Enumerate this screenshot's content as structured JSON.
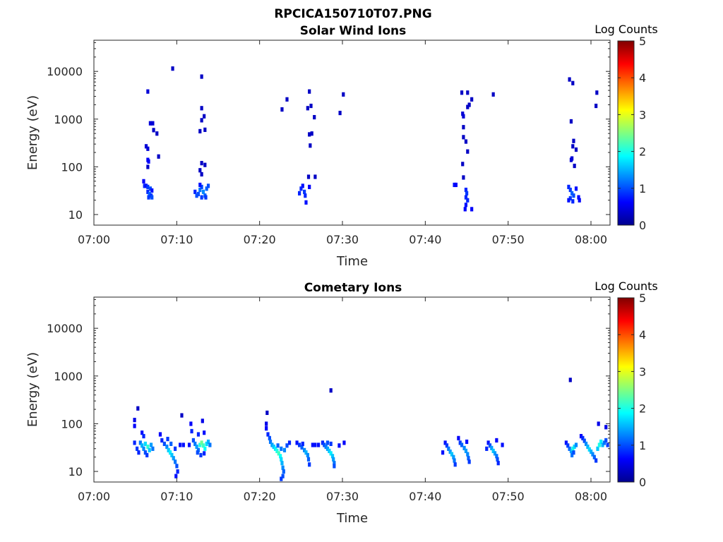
{
  "figure_title": "RPCICA150710T07.PNG",
  "colorbar_ticks": [
    "0",
    "1",
    "2",
    "3",
    "4",
    "5"
  ],
  "colorbar_label": "Log Counts",
  "colormap": [
    "#00008f",
    "#0000ff",
    "#0080ff",
    "#00ffff",
    "#80ff80",
    "#ffff00",
    "#ff8000",
    "#ff0000",
    "#800000"
  ],
  "chart_data": [
    {
      "type": "heatmap",
      "title": "Solar Wind Ions",
      "xlabel": "Time",
      "ylabel": "Energy (eV)",
      "x_ticks": [
        "07:00",
        "07:10",
        "07:20",
        "07:30",
        "07:40",
        "07:50",
        "08:00"
      ],
      "y_ticks": [
        "10",
        "100",
        "1000",
        "10000"
      ],
      "y_scale": "log",
      "ylim": [
        6,
        45000
      ],
      "xlim_minutes": [
        0,
        62.3
      ],
      "clim": [
        0,
        5
      ],
      "cells": [
        [
          9.5,
          11500,
          0.3
        ],
        [
          6.5,
          3800,
          0.4
        ],
        [
          13,
          7800,
          0.3
        ],
        [
          13,
          1700,
          0.3
        ],
        [
          13.3,
          1150,
          0.3
        ],
        [
          13.4,
          600,
          0.3
        ],
        [
          12.8,
          560,
          0.3
        ],
        [
          13,
          950,
          0.3
        ],
        [
          6.8,
          820,
          0.4
        ],
        [
          7.1,
          820,
          0.4
        ],
        [
          7.2,
          590,
          0.3
        ],
        [
          7.6,
          500,
          0.3
        ],
        [
          6.3,
          270,
          0.4
        ],
        [
          6.5,
          240,
          0.4
        ],
        [
          7.8,
          165,
          0.3
        ],
        [
          6.5,
          140,
          0.6
        ],
        [
          6.6,
          130,
          0.6
        ],
        [
          6.5,
          100,
          0.3
        ],
        [
          12.8,
          85,
          0.3
        ],
        [
          13,
          120,
          0.3
        ],
        [
          13.4,
          110,
          0.3
        ],
        [
          13,
          70,
          0.3
        ],
        [
          6,
          50,
          0.6
        ],
        [
          6.1,
          40,
          0.8
        ],
        [
          6.3,
          40,
          0.7
        ],
        [
          6.5,
          38,
          0.9
        ],
        [
          6.8,
          35,
          1.0
        ],
        [
          7,
          32,
          0.7
        ],
        [
          6.5,
          30,
          0.8
        ],
        [
          6.7,
          27,
          1.1
        ],
        [
          6.9,
          25,
          0.9
        ],
        [
          6.6,
          23,
          0.9
        ],
        [
          7.0,
          23,
          1.0
        ],
        [
          12.2,
          30,
          0.8
        ],
        [
          12.4,
          25,
          1.0
        ],
        [
          12.6,
          27,
          1.0
        ],
        [
          12.8,
          33,
          1.2
        ],
        [
          13.0,
          38,
          1.0
        ],
        [
          13.2,
          30,
          1.3
        ],
        [
          13.4,
          25,
          1.1
        ],
        [
          13.6,
          35,
          1.1
        ],
        [
          13.8,
          40,
          1.0
        ],
        [
          13.0,
          23,
          0.9
        ],
        [
          13.5,
          23,
          0.9
        ],
        [
          12.8,
          42,
          0.7
        ],
        [
          22.7,
          1600,
          0.3
        ],
        [
          23.3,
          2600,
          0.3
        ],
        [
          25.8,
          1700,
          0.3
        ],
        [
          26.2,
          1900,
          0.3
        ],
        [
          26.6,
          1100,
          0.3
        ],
        [
          26.0,
          3800,
          0.3
        ],
        [
          26,
          480,
          0.3
        ],
        [
          26.3,
          500,
          0.3
        ],
        [
          26.1,
          280,
          0.3
        ],
        [
          25.9,
          62,
          0.3
        ],
        [
          26.7,
          62,
          0.3
        ],
        [
          24.8,
          28,
          0.8
        ],
        [
          25.0,
          35,
          0.8
        ],
        [
          25.2,
          40,
          0.7
        ],
        [
          25.4,
          30,
          0.9
        ],
        [
          25.5,
          25,
          0.8
        ],
        [
          25.6,
          18,
          0.7
        ],
        [
          26.0,
          38,
          0.6
        ],
        [
          29.7,
          1350,
          0.3
        ],
        [
          30.1,
          3300,
          0.3
        ],
        [
          43.5,
          42,
          0.7
        ],
        [
          43.7,
          42,
          0.6
        ],
        [
          44.4,
          3600,
          0.3
        ],
        [
          45.1,
          3600,
          0.3
        ],
        [
          45.6,
          2600,
          0.3
        ],
        [
          45.3,
          2000,
          0.3
        ],
        [
          45.1,
          1800,
          0.3
        ],
        [
          44.5,
          1300,
          0.4
        ],
        [
          44.6,
          1150,
          0.4
        ],
        [
          44.6,
          680,
          0.3
        ],
        [
          44.6,
          420,
          0.3
        ],
        [
          44.9,
          340,
          0.3
        ],
        [
          45.1,
          210,
          0.3
        ],
        [
          44.5,
          115,
          0.3
        ],
        [
          44.6,
          60,
          0.3
        ],
        [
          48.2,
          3300,
          0.3
        ],
        [
          44.9,
          33,
          0.8
        ],
        [
          45.0,
          28,
          0.9
        ],
        [
          44.9,
          23,
          0.8
        ],
        [
          45.1,
          20,
          0.8
        ],
        [
          44.9,
          16,
          0.7
        ],
        [
          44.8,
          13,
          0.6
        ],
        [
          45.6,
          13,
          0.6
        ],
        [
          57.4,
          6800,
          0.3
        ],
        [
          57.8,
          5700,
          0.3
        ],
        [
          57.6,
          900,
          0.3
        ],
        [
          57.9,
          350,
          0.3
        ],
        [
          57.8,
          270,
          0.3
        ],
        [
          58.2,
          230,
          0.3
        ],
        [
          57.7,
          150,
          0.4
        ],
        [
          57.6,
          140,
          0.4
        ],
        [
          58.0,
          105,
          0.3
        ],
        [
          60.7,
          3600,
          0.3
        ],
        [
          60.6,
          1900,
          0.3
        ],
        [
          57.3,
          38,
          0.8
        ],
        [
          57.5,
          33,
          0.9
        ],
        [
          57.7,
          28,
          1.1
        ],
        [
          57.9,
          25,
          1.0
        ],
        [
          57.5,
          22,
          0.9
        ],
        [
          57.8,
          19,
          0.8
        ],
        [
          58.2,
          35,
          0.7
        ],
        [
          58.5,
          23,
          0.6
        ],
        [
          58.6,
          20,
          0.6
        ],
        [
          57.3,
          20,
          0.7
        ]
      ]
    },
    {
      "type": "heatmap",
      "title": "Cometary Ions",
      "xlabel": "Time",
      "ylabel": "Energy (eV)",
      "x_ticks": [
        "07:00",
        "07:10",
        "07:20",
        "07:30",
        "07:40",
        "07:50",
        "08:00"
      ],
      "y_ticks": [
        "10",
        "100",
        "1000",
        "10000"
      ],
      "y_scale": "log",
      "ylim": [
        6,
        45000
      ],
      "xlim_minutes": [
        0,
        62.3
      ],
      "clim": [
        0,
        5
      ],
      "cells": [
        [
          5.3,
          210,
          0.3
        ],
        [
          10.6,
          150,
          0.3
        ],
        [
          20.9,
          170,
          0.3
        ],
        [
          28.6,
          500,
          0.3
        ],
        [
          57.5,
          830,
          0.3
        ],
        [
          4.9,
          120,
          0.5
        ],
        [
          4.9,
          90,
          0.6
        ],
        [
          4.9,
          40,
          0.8
        ],
        [
          5.2,
          30,
          0.9
        ],
        [
          5.4,
          25,
          0.8
        ],
        [
          5.6,
          40,
          1.2
        ],
        [
          5.8,
          35,
          1.5
        ],
        [
          6.0,
          30,
          1.3
        ],
        [
          6.2,
          38,
          1.7
        ],
        [
          6.5,
          33,
          2.1
        ],
        [
          6.7,
          28,
          1.6
        ],
        [
          6.9,
          36,
          1.4
        ],
        [
          7.1,
          30,
          1.2
        ],
        [
          5.8,
          65,
          0.7
        ],
        [
          6.0,
          55,
          0.8
        ],
        [
          6.2,
          25,
          1.0
        ],
        [
          6.4,
          22,
          0.9
        ],
        [
          8.0,
          60,
          0.6
        ],
        [
          8.2,
          45,
          0.8
        ],
        [
          8.5,
          38,
          1.0
        ],
        [
          8.8,
          33,
          1.3
        ],
        [
          9.0,
          28,
          1.6
        ],
        [
          9.2,
          25,
          1.8
        ],
        [
          9.4,
          22,
          1.6
        ],
        [
          9.6,
          19,
          1.4
        ],
        [
          9.8,
          16,
          1.2
        ],
        [
          10.0,
          13,
          1.0
        ],
        [
          10.1,
          10,
          0.8
        ],
        [
          9.9,
          8,
          0.7
        ],
        [
          8.9,
          48,
          0.9
        ],
        [
          9.3,
          38,
          1.1
        ],
        [
          9.8,
          30,
          0.9
        ],
        [
          10.4,
          36,
          0.7
        ],
        [
          10.8,
          36,
          0.7
        ],
        [
          11.5,
          36,
          0.7
        ],
        [
          11.7,
          100,
          0.6
        ],
        [
          11.8,
          70,
          0.8
        ],
        [
          12.0,
          45,
          1.0
        ],
        [
          12.2,
          38,
          1.2
        ],
        [
          12.4,
          33,
          1.4
        ],
        [
          12.6,
          28,
          1.2
        ],
        [
          12.8,
          36,
          2.0
        ],
        [
          13.0,
          40,
          2.4
        ],
        [
          13.2,
          35,
          2.2
        ],
        [
          13.4,
          30,
          1.9
        ],
        [
          13.6,
          38,
          1.7
        ],
        [
          13.8,
          42,
          1.5
        ],
        [
          14.0,
          36,
          1.2
        ],
        [
          12.6,
          60,
          0.8
        ],
        [
          13.1,
          115,
          0.5
        ],
        [
          13.3,
          65,
          0.7
        ],
        [
          12.5,
          25,
          1.0
        ],
        [
          12.9,
          22,
          0.9
        ],
        [
          13.3,
          24,
          0.8
        ],
        [
          20.8,
          100,
          0.5
        ],
        [
          20.8,
          80,
          0.6
        ],
        [
          21.0,
          60,
          0.8
        ],
        [
          21.2,
          50,
          1.0
        ],
        [
          21.3,
          42,
          1.2
        ],
        [
          21.5,
          36,
          1.4
        ],
        [
          21.7,
          33,
          1.6
        ],
        [
          21.9,
          30,
          1.8
        ],
        [
          22.1,
          27,
          2.0
        ],
        [
          22.3,
          24,
          2.2
        ],
        [
          22.5,
          21,
          1.9
        ],
        [
          22.6,
          18,
          1.7
        ],
        [
          22.7,
          15,
          1.5
        ],
        [
          22.8,
          12,
          1.3
        ],
        [
          22.9,
          10,
          1.1
        ],
        [
          22.8,
          8,
          1.0
        ],
        [
          22.6,
          7,
          0.9
        ],
        [
          22.2,
          35,
          1.1
        ],
        [
          22.6,
          30,
          1.2
        ],
        [
          23.0,
          28,
          1.3
        ],
        [
          23.3,
          35,
          1.0
        ],
        [
          23.6,
          40,
          0.8
        ],
        [
          24.5,
          40,
          0.7
        ],
        [
          24.8,
          36,
          0.9
        ],
        [
          25.1,
          32,
          1.1
        ],
        [
          25.4,
          28,
          1.3
        ],
        [
          25.6,
          25,
          1.5
        ],
        [
          25.8,
          22,
          1.3
        ],
        [
          25.9,
          18,
          1.1
        ],
        [
          26.0,
          14,
          0.9
        ],
        [
          25.2,
          38,
          0.8
        ],
        [
          26.4,
          36,
          0.7
        ],
        [
          26.7,
          36,
          0.7
        ],
        [
          27.1,
          36,
          0.7
        ],
        [
          27.6,
          40,
          0.8
        ],
        [
          27.8,
          36,
          1.0
        ],
        [
          28.0,
          33,
          1.2
        ],
        [
          28.2,
          30,
          1.4
        ],
        [
          28.4,
          27,
          1.6
        ],
        [
          28.6,
          24,
          1.8
        ],
        [
          28.8,
          21,
          1.6
        ],
        [
          28.9,
          18,
          1.4
        ],
        [
          29.0,
          15,
          1.2
        ],
        [
          29.0,
          13,
          1.0
        ],
        [
          28.2,
          40,
          1.0
        ],
        [
          28.6,
          38,
          0.9
        ],
        [
          29.6,
          35,
          0.7
        ],
        [
          30.2,
          40,
          0.6
        ],
        [
          42.4,
          40,
          0.7
        ],
        [
          42.6,
          35,
          0.9
        ],
        [
          42.8,
          30,
          1.2
        ],
        [
          43.0,
          26,
          1.4
        ],
        [
          43.2,
          23,
          1.6
        ],
        [
          43.4,
          20,
          1.4
        ],
        [
          43.5,
          17,
          1.2
        ],
        [
          43.6,
          14,
          0.9
        ],
        [
          42.1,
          25,
          0.7
        ],
        [
          44.0,
          50,
          0.6
        ],
        [
          44.2,
          40,
          0.9
        ],
        [
          44.4,
          36,
          1.1
        ],
        [
          44.7,
          31,
          1.3
        ],
        [
          44.9,
          27,
          1.4
        ],
        [
          45.1,
          23,
          1.3
        ],
        [
          45.2,
          19,
          1.1
        ],
        [
          45.3,
          16,
          0.9
        ],
        [
          45.0,
          42,
          0.7
        ],
        [
          47.6,
          40,
          0.7
        ],
        [
          47.8,
          35,
          1.0
        ],
        [
          48.0,
          31,
          1.4
        ],
        [
          48.2,
          27,
          1.6
        ],
        [
          48.4,
          24,
          1.4
        ],
        [
          48.6,
          21,
          1.2
        ],
        [
          48.7,
          18,
          1.0
        ],
        [
          48.8,
          15,
          0.8
        ],
        [
          47.4,
          30,
          0.8
        ],
        [
          48.6,
          45,
          0.6
        ],
        [
          49.3,
          36,
          0.7
        ],
        [
          57.0,
          40,
          0.7
        ],
        [
          57.2,
          35,
          0.9
        ],
        [
          57.4,
          30,
          1.1
        ],
        [
          57.6,
          27,
          1.4
        ],
        [
          57.8,
          30,
          2.0
        ],
        [
          58.0,
          33,
          1.7
        ],
        [
          58.2,
          36,
          1.3
        ],
        [
          57.7,
          22,
          1.2
        ],
        [
          57.9,
          25,
          1.0
        ],
        [
          58.8,
          55,
          0.6
        ],
        [
          59.0,
          50,
          0.8
        ],
        [
          59.2,
          44,
          1.0
        ],
        [
          59.4,
          38,
          1.3
        ],
        [
          59.6,
          33,
          1.5
        ],
        [
          59.8,
          29,
          1.7
        ],
        [
          60.0,
          26,
          1.5
        ],
        [
          60.2,
          23,
          1.3
        ],
        [
          60.4,
          20,
          1.1
        ],
        [
          60.6,
          17,
          0.9
        ],
        [
          60.8,
          30,
          1.6
        ],
        [
          61.0,
          36,
          2.0
        ],
        [
          61.2,
          42,
          1.8
        ],
        [
          61.4,
          36,
          1.5
        ],
        [
          61.6,
          40,
          1.2
        ],
        [
          61.8,
          45,
          1.0
        ],
        [
          61.8,
          85,
          0.5
        ],
        [
          60.9,
          100,
          0.5
        ],
        [
          62.0,
          36,
          0.9
        ]
      ]
    }
  ]
}
